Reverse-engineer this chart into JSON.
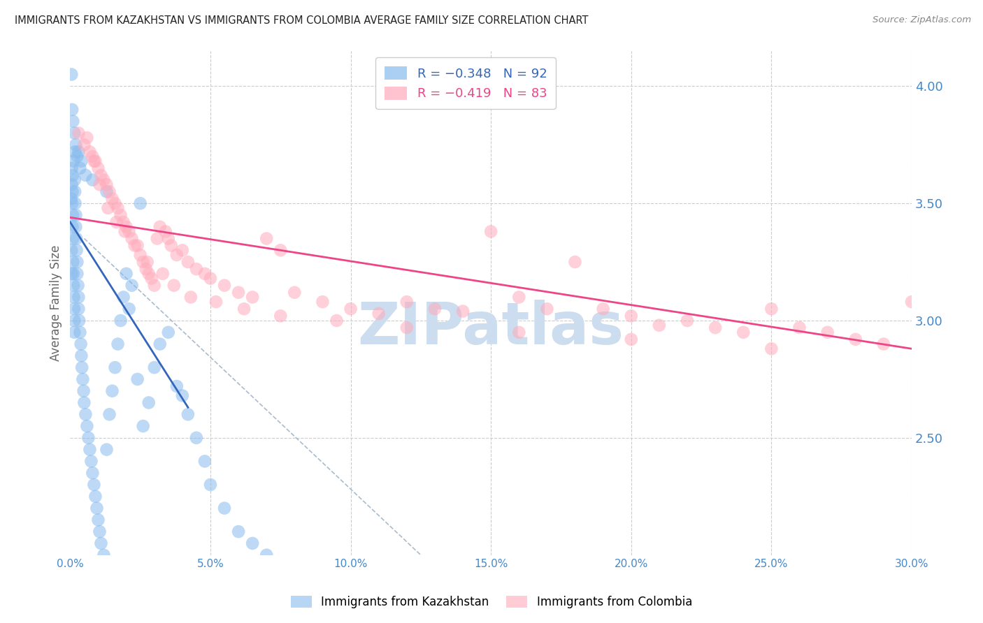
{
  "title": "IMMIGRANTS FROM KAZAKHSTAN VS IMMIGRANTS FROM COLOMBIA AVERAGE FAMILY SIZE CORRELATION CHART",
  "source": "Source: ZipAtlas.com",
  "ylabel": "Average Family Size",
  "xmin": 0.0,
  "xmax": 30.0,
  "ymin": 2.0,
  "ymax": 4.15,
  "yticks": [
    2.5,
    3.0,
    3.5,
    4.0
  ],
  "xticks": [
    0.0,
    5.0,
    10.0,
    15.0,
    20.0,
    25.0,
    30.0
  ],
  "kaz_color": "#88bbee",
  "col_color": "#ffaabb",
  "kaz_line_color": "#3366bb",
  "col_line_color": "#ee4488",
  "dashed_color": "#aabbcc",
  "watermark": "ZIPatlas",
  "watermark_color": "#ccddf0",
  "background_color": "#ffffff",
  "grid_color": "#cccccc",
  "axis_label_color": "#4488cc",
  "title_color": "#222222",
  "kaz_line": {
    "x0": 0.0,
    "x1": 4.2,
    "y0": 3.42,
    "y1": 2.63
  },
  "col_line": {
    "x0": 0.0,
    "x1": 30.0,
    "y0": 3.44,
    "y1": 2.88
  },
  "dashed_line": {
    "x0": 0.5,
    "x1": 12.5,
    "y0": 3.35,
    "y1": 2.0
  },
  "kaz_scatter_x": [
    0.05,
    0.05,
    0.06,
    0.07,
    0.08,
    0.08,
    0.09,
    0.1,
    0.1,
    0.11,
    0.12,
    0.13,
    0.14,
    0.15,
    0.15,
    0.16,
    0.17,
    0.18,
    0.2,
    0.2,
    0.22,
    0.23,
    0.25,
    0.25,
    0.28,
    0.3,
    0.3,
    0.32,
    0.35,
    0.38,
    0.4,
    0.42,
    0.45,
    0.48,
    0.5,
    0.55,
    0.6,
    0.65,
    0.7,
    0.75,
    0.8,
    0.85,
    0.9,
    0.95,
    1.0,
    1.05,
    1.1,
    1.2,
    1.3,
    1.4,
    1.5,
    1.6,
    1.7,
    1.8,
    1.9,
    2.0,
    2.1,
    2.2,
    2.4,
    2.6,
    2.8,
    3.0,
    3.2,
    3.5,
    3.8,
    4.0,
    4.2,
    4.5,
    4.8,
    5.0,
    5.5,
    6.0,
    6.5,
    7.0,
    2.5,
    1.3,
    0.8,
    0.35,
    0.25,
    0.18,
    0.12,
    0.09,
    0.06,
    0.04,
    0.05,
    0.07,
    0.1,
    0.15,
    0.2,
    0.3,
    0.4,
    0.55
  ],
  "kaz_scatter_y": [
    3.3,
    3.2,
    3.65,
    3.5,
    3.55,
    3.4,
    3.45,
    3.35,
    3.25,
    3.2,
    3.15,
    3.1,
    3.05,
    3.0,
    2.95,
    3.6,
    3.55,
    3.5,
    3.45,
    3.4,
    3.35,
    3.3,
    3.25,
    3.2,
    3.15,
    3.1,
    3.05,
    3.0,
    2.95,
    2.9,
    2.85,
    2.8,
    2.75,
    2.7,
    2.65,
    2.6,
    2.55,
    2.5,
    2.45,
    2.4,
    2.35,
    2.3,
    2.25,
    2.2,
    2.15,
    2.1,
    2.05,
    2.0,
    2.45,
    2.6,
    2.7,
    2.8,
    2.9,
    3.0,
    3.1,
    3.2,
    3.05,
    3.15,
    2.75,
    2.55,
    2.65,
    2.8,
    2.9,
    2.95,
    2.72,
    2.68,
    2.6,
    2.5,
    2.4,
    2.3,
    2.2,
    2.1,
    2.05,
    2.0,
    3.5,
    3.55,
    3.6,
    3.65,
    3.7,
    3.72,
    3.68,
    3.62,
    3.58,
    3.52,
    4.05,
    3.9,
    3.85,
    3.8,
    3.75,
    3.72,
    3.68,
    3.62
  ],
  "col_scatter_x": [
    0.3,
    0.5,
    0.7,
    0.8,
    0.9,
    1.0,
    1.1,
    1.2,
    1.3,
    1.4,
    1.5,
    1.6,
    1.7,
    1.8,
    1.9,
    2.0,
    2.1,
    2.2,
    2.3,
    2.5,
    2.6,
    2.7,
    2.8,
    2.9,
    3.0,
    3.1,
    3.2,
    3.4,
    3.5,
    3.6,
    3.8,
    4.0,
    4.2,
    4.5,
    4.8,
    5.0,
    5.5,
    6.0,
    6.5,
    7.0,
    7.5,
    8.0,
    9.0,
    10.0,
    11.0,
    12.0,
    13.0,
    14.0,
    15.0,
    16.0,
    17.0,
    18.0,
    19.0,
    20.0,
    21.0,
    22.0,
    23.0,
    24.0,
    25.0,
    26.0,
    27.0,
    28.0,
    29.0,
    30.0,
    0.6,
    0.85,
    1.05,
    1.35,
    1.65,
    1.95,
    2.4,
    2.75,
    3.3,
    3.7,
    4.3,
    5.2,
    6.2,
    7.5,
    9.5,
    12.0,
    16.0,
    20.0,
    25.0
  ],
  "col_scatter_y": [
    3.8,
    3.75,
    3.72,
    3.7,
    3.68,
    3.65,
    3.62,
    3.6,
    3.58,
    3.55,
    3.52,
    3.5,
    3.48,
    3.45,
    3.42,
    3.4,
    3.38,
    3.35,
    3.32,
    3.28,
    3.25,
    3.22,
    3.2,
    3.18,
    3.15,
    3.35,
    3.4,
    3.38,
    3.35,
    3.32,
    3.28,
    3.3,
    3.25,
    3.22,
    3.2,
    3.18,
    3.15,
    3.12,
    3.1,
    3.35,
    3.3,
    3.12,
    3.08,
    3.05,
    3.03,
    3.08,
    3.05,
    3.04,
    3.38,
    3.1,
    3.05,
    3.25,
    3.05,
    3.02,
    2.98,
    3.0,
    2.97,
    2.95,
    3.05,
    2.97,
    2.95,
    2.92,
    2.9,
    3.08,
    3.78,
    3.68,
    3.58,
    3.48,
    3.42,
    3.38,
    3.32,
    3.25,
    3.2,
    3.15,
    3.1,
    3.08,
    3.05,
    3.02,
    3.0,
    2.97,
    2.95,
    2.92,
    2.88
  ]
}
